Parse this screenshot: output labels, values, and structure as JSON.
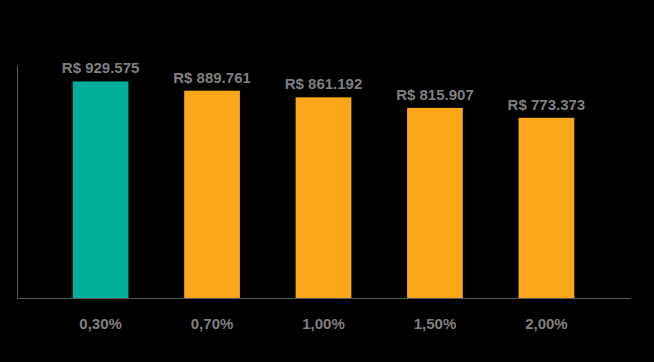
{
  "chart_data": {
    "type": "bar",
    "categories": [
      "0,30%",
      "0,70%",
      "1,00%",
      "1,50%",
      "2,00%"
    ],
    "values": [
      929575,
      889761,
      861192,
      815907,
      773373
    ],
    "value_labels": [
      "R$ 929.575",
      "R$ 889.761",
      "R$ 861.192",
      "R$ 815.907",
      "R$ 773.373"
    ],
    "colors": [
      "#00b09c",
      "#f9a61b",
      "#f9a61b",
      "#f9a61b",
      "#f9a61b"
    ],
    "ylim": [
      0,
      1000000
    ],
    "data_labels": true,
    "tick_labels": "x",
    "grid": false
  }
}
